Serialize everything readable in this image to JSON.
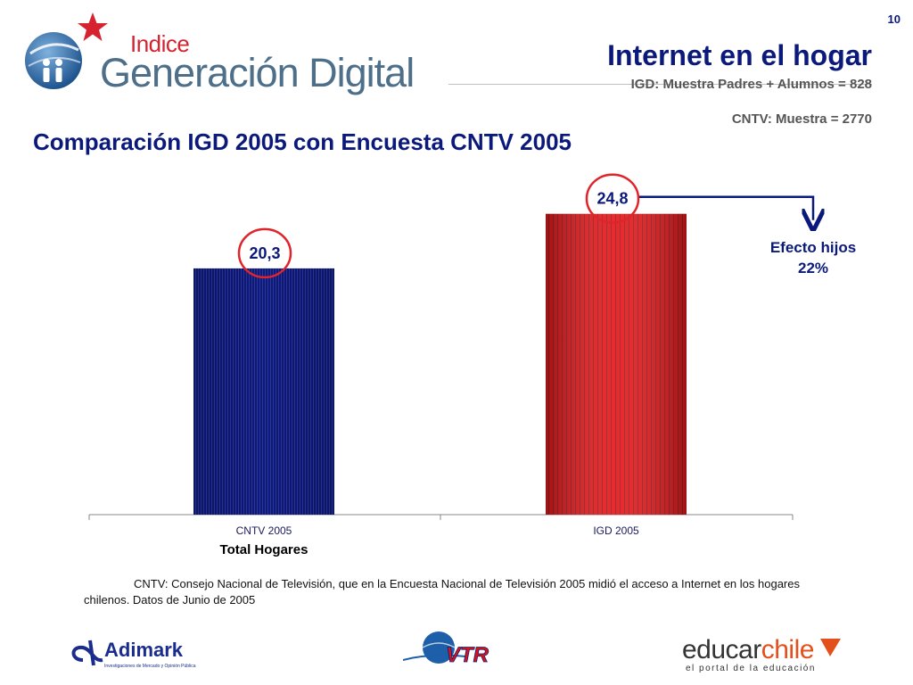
{
  "page_number": "10",
  "brand": {
    "indice": "Indice",
    "name": "Generación Digital",
    "star_color": "#d5232f",
    "globe_color": "#1f5a94"
  },
  "header": {
    "title": "Internet en el hogar",
    "subtitle_1": "IGD: Muestra Padres + Alumnos = 828",
    "subtitle_2": "CNTV: Muestra = 2770"
  },
  "section_title": "Comparación IGD 2005 con Encuesta CNTV 2005",
  "chart_data": {
    "type": "bar",
    "categories": [
      "CNTV 2005",
      "IGD 2005"
    ],
    "values": [
      20.3,
      24.8
    ],
    "data_labels": [
      "20,3",
      "24,8"
    ],
    "colors": [
      "#0f1a73",
      "#e4181b"
    ],
    "xlabel": "Total Hogares",
    "ylim": [
      0,
      30
    ],
    "grid": false,
    "annotation": {
      "line_1": "Efecto hijos",
      "line_2": "22%",
      "color": "#0b1a7a"
    },
    "highlight_circle_color": "#e0242a"
  },
  "note": {
    "line_1": "CNTV: Consejo Nacional de Televisión, que en la Encuesta Nacional de Televisión 2005 midió el acceso a Internet en los hogares",
    "line_2": "chilenos. Datos de Junio de 2005"
  },
  "footer": {
    "adimark": "Adimark",
    "adimark_tagline": "Investigaciones de Mercado y Opinión Pública",
    "vtr": "VTR",
    "educar": "educar",
    "chile": "chile",
    "educar_tagline": "el portal de la educación"
  }
}
